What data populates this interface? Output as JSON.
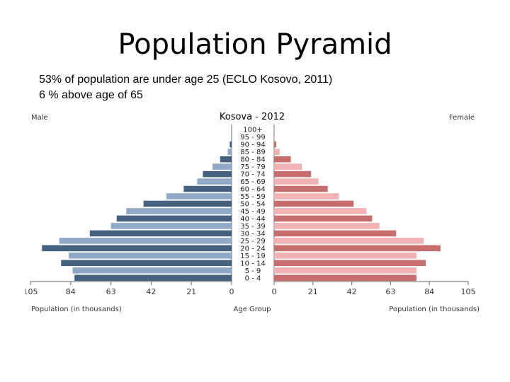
{
  "slide": {
    "title": "Population Pyramid",
    "subtitle_lines": [
      "53% of population are under age 25 (ECLO Kosovo, 2011)",
      "6 % above age of 65"
    ]
  },
  "chart_data": {
    "type": "bar",
    "orientation": "horizontal-pyramid",
    "title": "Kosova - 2012",
    "left_header": "Male",
    "right_header": "Female",
    "xlabel_left": "Population (in thousands)",
    "xlabel_center": "Age Group",
    "xlabel_right": "Population (in thousands)",
    "xlim": [
      0,
      105
    ],
    "x_ticks_left": [
      "105",
      "84",
      "63",
      "42",
      "21",
      "0"
    ],
    "x_ticks_right": [
      "0",
      "21",
      "42",
      "63",
      "84",
      "105"
    ],
    "tick_values": [
      0,
      21,
      42,
      63,
      84,
      105
    ],
    "categories": [
      "0 - 4",
      "5 - 9",
      "10 - 14",
      "15 - 19",
      "20 - 24",
      "25 - 29",
      "30 - 34",
      "35 - 39",
      "40 - 44",
      "45 - 49",
      "50 - 54",
      "55 - 59",
      "60 - 64",
      "65 - 69",
      "70 - 74",
      "75 - 79",
      "80 - 84",
      "85 - 89",
      "90 - 94",
      "95 - 99",
      "100+"
    ],
    "series": [
      {
        "name": "Male",
        "values": [
          82,
          83,
          89,
          85,
          99,
          90,
          74,
          63,
          60,
          55,
          46,
          34,
          25,
          18,
          15,
          10,
          6,
          2,
          1,
          0.3,
          0.1
        ]
      },
      {
        "name": "Female",
        "values": [
          77,
          77,
          82,
          77,
          90,
          81,
          66,
          57,
          53,
          50,
          43,
          35,
          29,
          24,
          20,
          15,
          9,
          3,
          1.2,
          0.3,
          0.1
        ]
      }
    ],
    "colors": {
      "male_dark": "#46607f",
      "male_light": "#91a9c9",
      "female_dark": "#c86d6d",
      "female_light": "#f0b2b2"
    }
  }
}
